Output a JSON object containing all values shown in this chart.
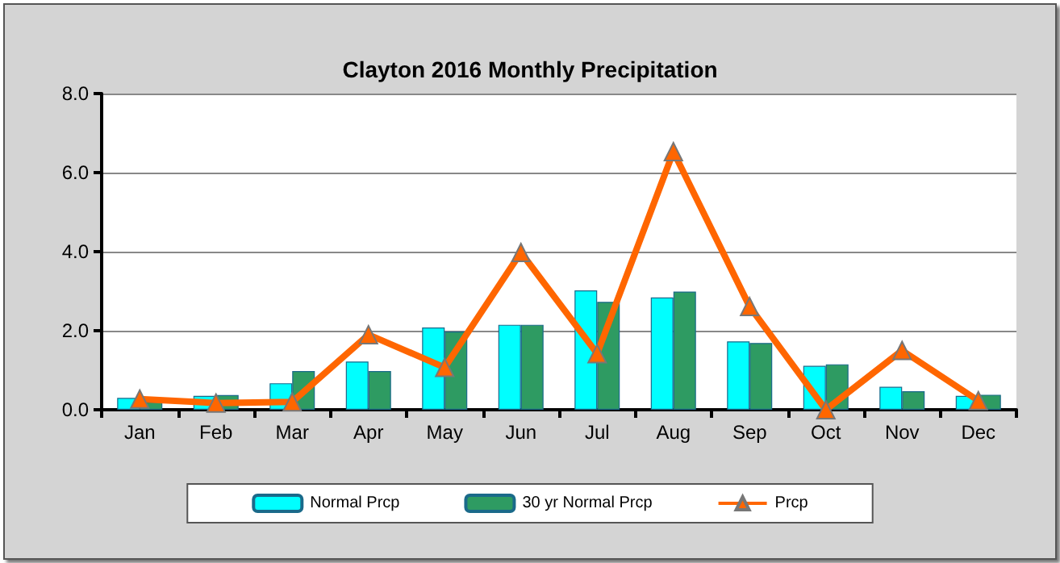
{
  "chart_data": {
    "type": "bar",
    "title": "Clayton 2016 Monthly Precipitation",
    "categories": [
      "Jan",
      "Feb",
      "Mar",
      "Apr",
      "May",
      "Jun",
      "Jul",
      "Aug",
      "Sep",
      "Oct",
      "Nov",
      "Dec"
    ],
    "series": [
      {
        "name": "Normal Prcp",
        "color": "#00ffff",
        "values": [
          0.3,
          0.35,
          0.67,
          1.22,
          2.08,
          2.15,
          3.02,
          2.84,
          1.73,
          1.11,
          0.58,
          0.35
        ]
      },
      {
        "name": "30 yr Normal Prcp",
        "color": "#2e9b62",
        "values": [
          0.2,
          0.37,
          0.98,
          0.98,
          1.98,
          2.15,
          2.73,
          2.99,
          1.69,
          1.15,
          0.47,
          0.38
        ]
      },
      {
        "name": "Prcp",
        "type": "line",
        "color": "#ff6600",
        "marker": "triangle",
        "values": [
          0.27,
          0.17,
          0.2,
          1.9,
          1.07,
          3.98,
          1.42,
          6.53,
          2.61,
          0,
          1.5,
          0.23
        ]
      }
    ],
    "ylim": [
      0,
      8
    ],
    "yticks": [
      {
        "value": 0,
        "label": "0.0"
      },
      {
        "value": 2,
        "label": "2.0"
      },
      {
        "value": 4,
        "label": "4.0"
      },
      {
        "value": 6,
        "label": "6.0"
      },
      {
        "value": 8,
        "label": "8.0"
      }
    ],
    "grid": "y",
    "legend": "bottom"
  }
}
